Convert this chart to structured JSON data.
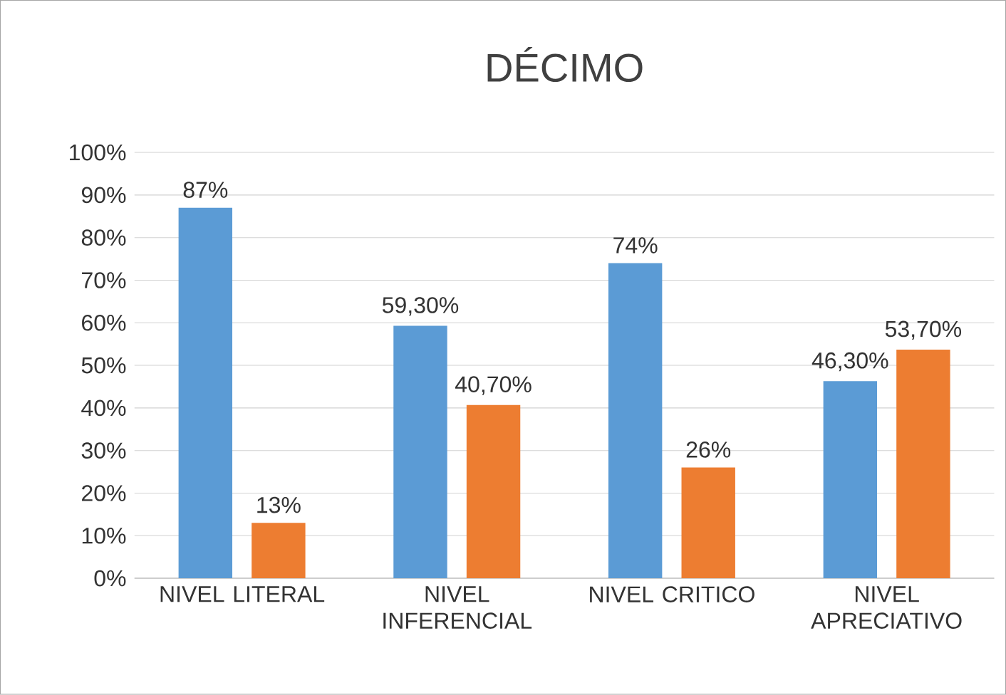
{
  "chart_data": {
    "type": "bar",
    "title": "DÉCIMO",
    "categories": [
      "NIVEL LITERAL",
      "NIVEL INFERENCIAL",
      "NIVEL CRITICO",
      "NIVEL APRECIATIVO"
    ],
    "series": [
      {
        "color": "#5b9bd5",
        "values": [
          87,
          59.3,
          74,
          46.3
        ],
        "value_labels": [
          "87%",
          "59,30%",
          "74%",
          "46,30%"
        ]
      },
      {
        "color": "#ed7d31",
        "values": [
          13,
          40.7,
          26,
          53.7
        ],
        "value_labels": [
          "13%",
          "40,70%",
          "26%",
          "53,70%"
        ]
      }
    ],
    "ylim": [
      0,
      100
    ],
    "yticks": [
      {
        "value": 0,
        "label": "0%"
      },
      {
        "value": 10,
        "label": "10%"
      },
      {
        "value": 20,
        "label": "20%"
      },
      {
        "value": 30,
        "label": "30%"
      },
      {
        "value": 40,
        "label": "40%"
      },
      {
        "value": 50,
        "label": "50%"
      },
      {
        "value": 60,
        "label": "60%"
      },
      {
        "value": 70,
        "label": "70%"
      },
      {
        "value": 80,
        "label": "80%"
      },
      {
        "value": 90,
        "label": "90%"
      },
      {
        "value": 100,
        "label": "100%"
      }
    ],
    "grid": "y"
  }
}
